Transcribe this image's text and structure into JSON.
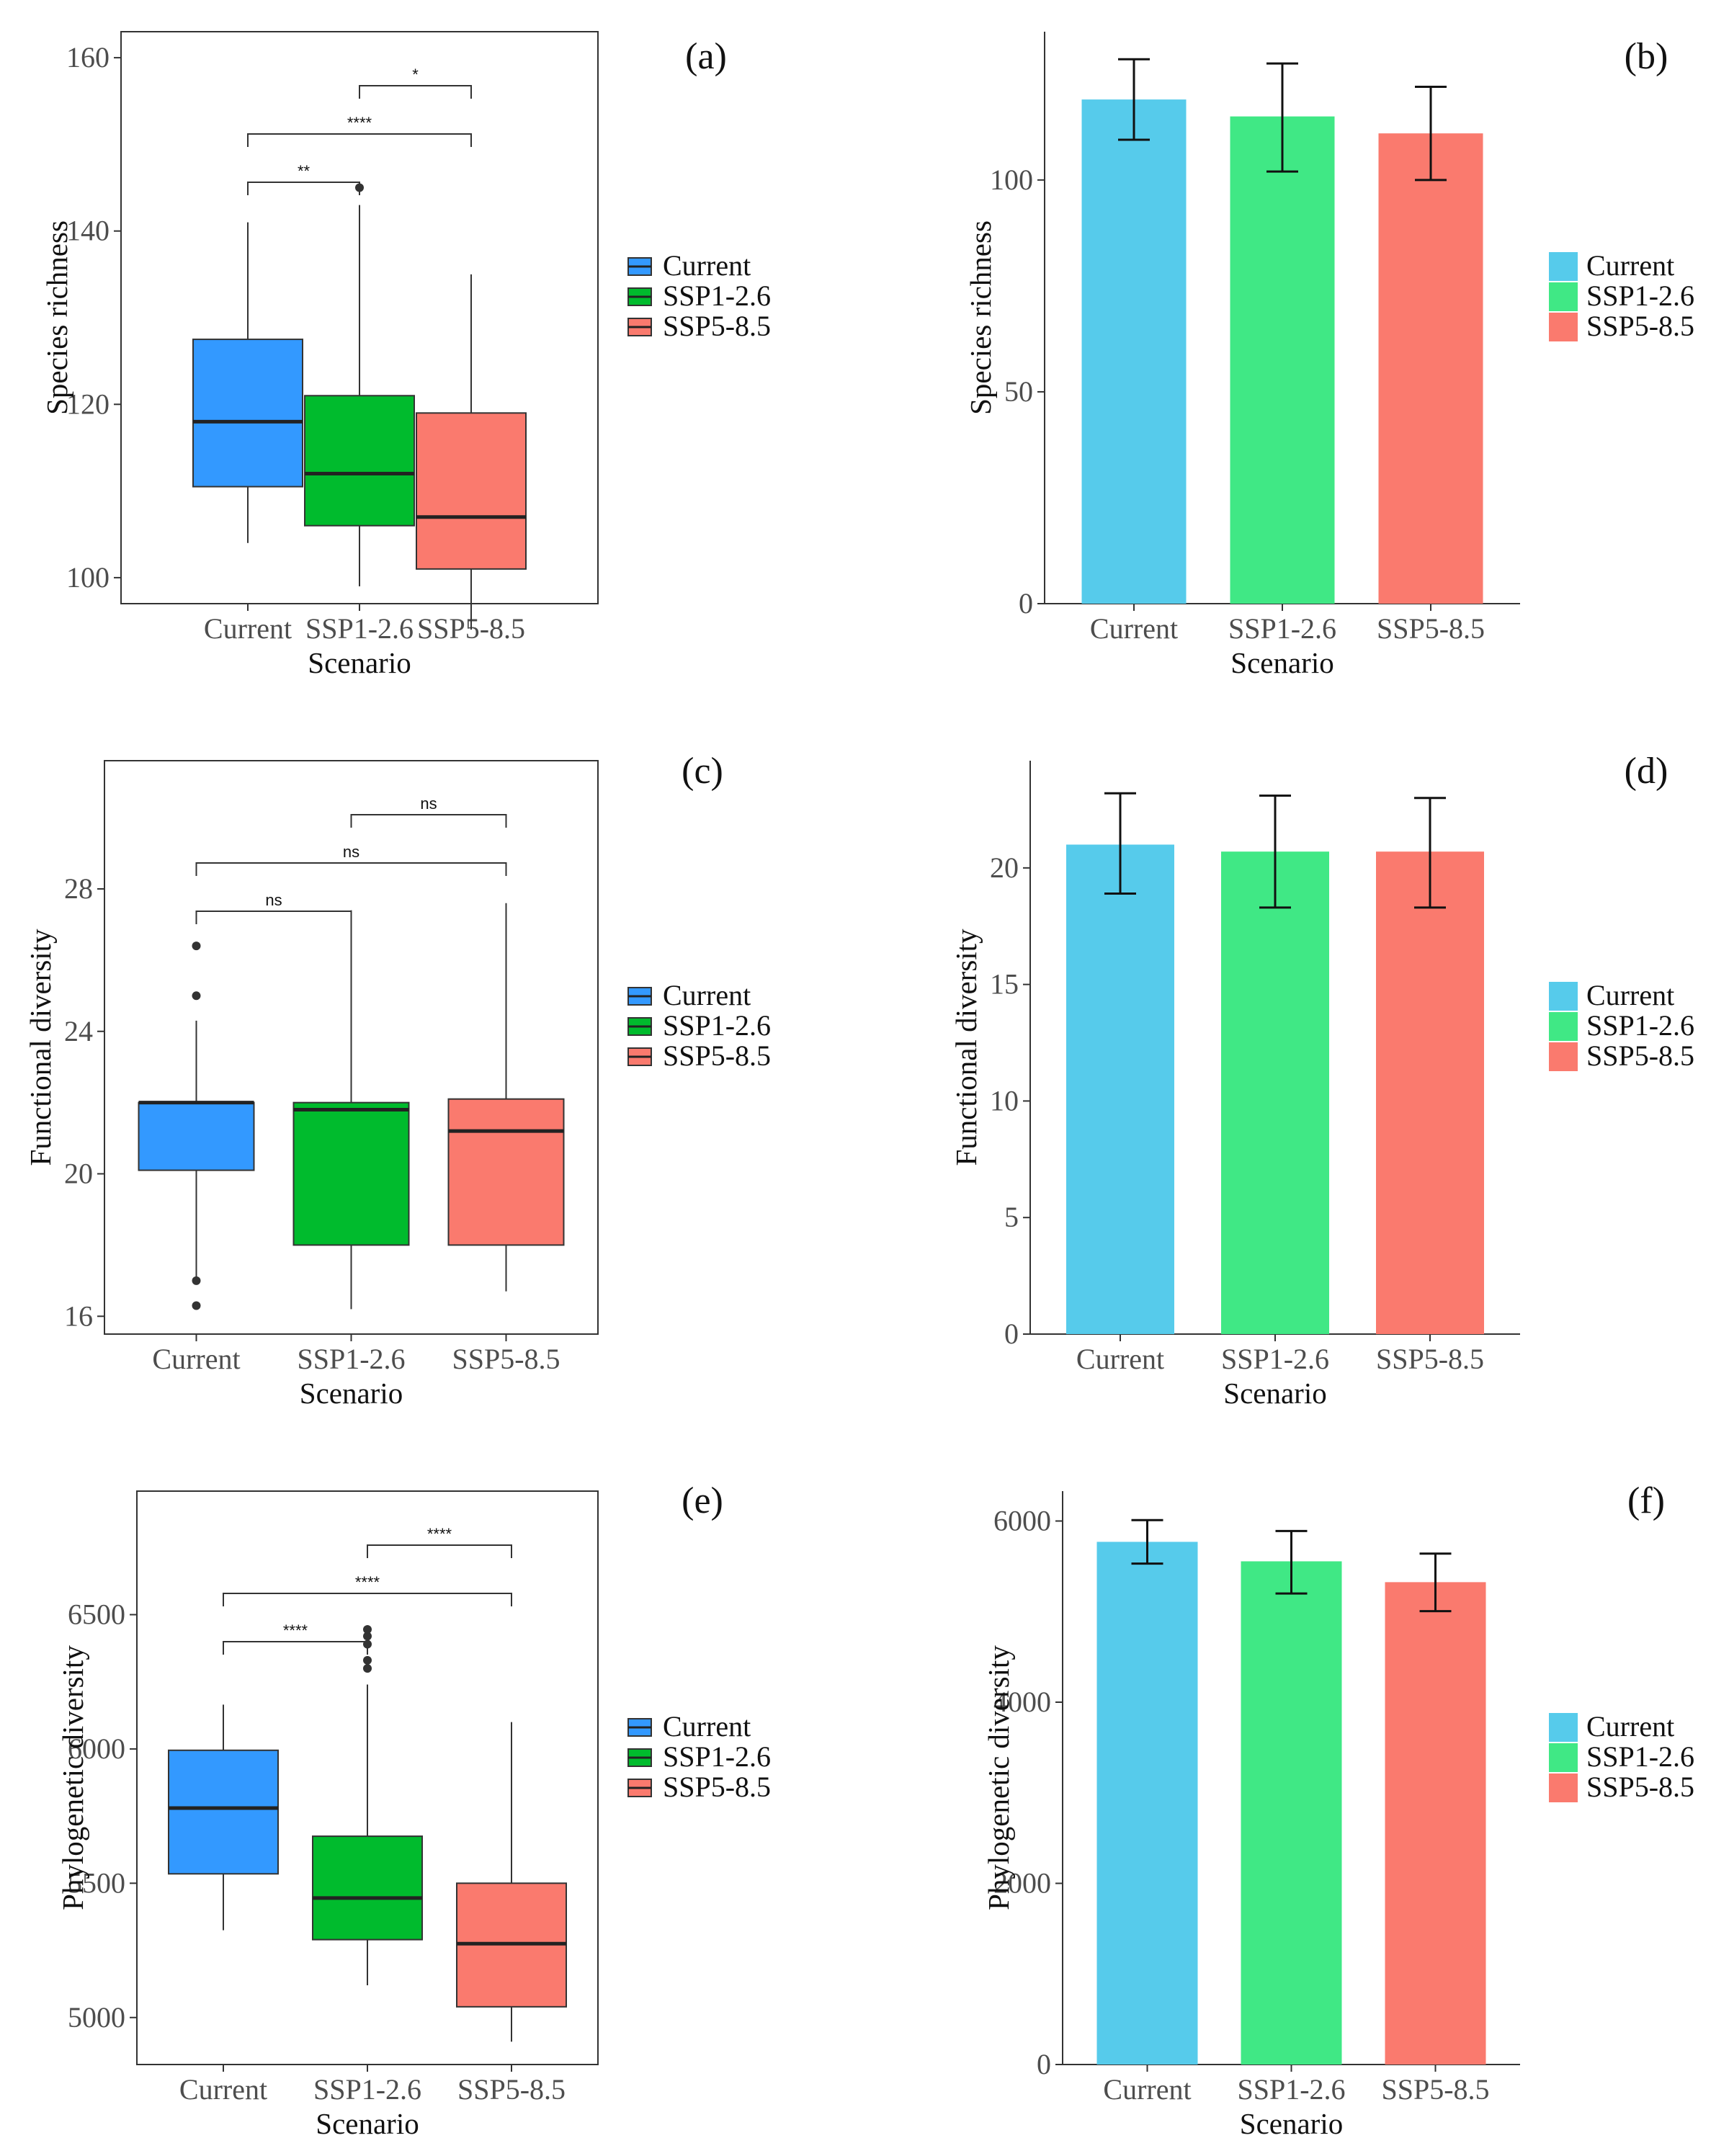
{
  "colors": {
    "box": [
      "#3399ff",
      "#00bb2d",
      "#fa7a6e"
    ],
    "bar": [
      "#56cbeb",
      "#40e885",
      "#fa7a6e"
    ]
  },
  "chart_data": [
    {
      "id": "a",
      "type": "box",
      "panel_label": "(a)",
      "title": "",
      "xlabel": "Scenario",
      "ylabel": "Species richness",
      "categories": [
        "Current",
        "SSP1-2.6",
        "SSP5-8.5"
      ],
      "ylim": [
        97,
        163
      ],
      "yticks": [
        100,
        120,
        140,
        160
      ],
      "boxes": [
        {
          "q1": 110.5,
          "median": 118,
          "q3": 127.5,
          "low": 104,
          "high": 141,
          "outliers": []
        },
        {
          "q1": 106,
          "median": 112,
          "q3": 121,
          "low": 99,
          "high": 143,
          "outliers": [
            145
          ]
        },
        {
          "q1": 101,
          "median": 107,
          "q3": 119,
          "low": 94,
          "high": 135,
          "outliers": []
        }
      ],
      "significance": [
        {
          "from": 0,
          "to": 1,
          "label": "**",
          "level": 1
        },
        {
          "from": 0,
          "to": 2,
          "label": "****",
          "level": 2
        },
        {
          "from": 1,
          "to": 2,
          "label": "*",
          "level": 3
        }
      ],
      "legend": [
        "Current",
        "SSP1-2.6",
        "SSP5-8.5"
      ]
    },
    {
      "id": "b",
      "type": "bar",
      "panel_label": "(b)",
      "title": "",
      "xlabel": "Scenario",
      "ylabel": "Species richness",
      "categories": [
        "Current",
        "SSP1-2.6",
        "SSP5-8.5"
      ],
      "ylim": [
        0,
        135
      ],
      "yticks": [
        0,
        50,
        100
      ],
      "values": [
        119,
        115,
        111
      ],
      "errors": [
        [
          109.5,
          128.5
        ],
        [
          102,
          127.5
        ],
        [
          100,
          122
        ]
      ],
      "legend": [
        "Current",
        "SSP1-2.6",
        "SSP5-8.5"
      ]
    },
    {
      "id": "c",
      "type": "box",
      "panel_label": "(c)",
      "title": "",
      "xlabel": "Scenario",
      "ylabel": "Functional diversity",
      "categories": [
        "Current",
        "SSP1-2.6",
        "SSP5-8.5"
      ],
      "ylim": [
        15.5,
        31.6
      ],
      "yticks": [
        16,
        20,
        24,
        28
      ],
      "boxes": [
        {
          "q1": 20.1,
          "median": 22.0,
          "q3": 22.0,
          "low": 17.0,
          "high": 24.3,
          "outliers": [
            16.3,
            17.0,
            25.0,
            26.4
          ]
        },
        {
          "q1": 18.0,
          "median": 21.8,
          "q3": 22.0,
          "low": 16.2,
          "high": 27.4,
          "outliers": []
        },
        {
          "q1": 18.0,
          "median": 21.2,
          "q3": 22.1,
          "low": 16.7,
          "high": 27.6,
          "outliers": []
        }
      ],
      "significance": [
        {
          "from": 0,
          "to": 1,
          "label": "ns",
          "level": 1
        },
        {
          "from": 0,
          "to": 2,
          "label": "ns",
          "level": 2
        },
        {
          "from": 1,
          "to": 2,
          "label": "ns",
          "level": 3
        }
      ],
      "legend": [
        "Current",
        "SSP1-2.6",
        "SSP5-8.5"
      ]
    },
    {
      "id": "d",
      "type": "bar",
      "panel_label": "(d)",
      "title": "",
      "xlabel": "Scenario",
      "ylabel": "Functional diversity",
      "categories": [
        "Current",
        "SSP1-2.6",
        "SSP5-8.5"
      ],
      "ylim": [
        0,
        24.6
      ],
      "yticks": [
        0,
        5,
        10,
        15,
        20
      ],
      "values": [
        21.0,
        20.7,
        20.7
      ],
      "errors": [
        [
          18.9,
          23.2
        ],
        [
          18.3,
          23.1
        ],
        [
          18.3,
          23.0
        ]
      ],
      "legend": [
        "Current",
        "SSP1-2.6",
        "SSP5-8.5"
      ]
    },
    {
      "id": "e",
      "type": "box",
      "panel_label": "(e)",
      "title": "",
      "xlabel": "Scenario",
      "ylabel": "Phylogenetic diversity",
      "categories": [
        "Current",
        "SSP1-2.6",
        "SSP5-8.5"
      ],
      "ylim": [
        4825,
        6960
      ],
      "yticks": [
        5000,
        5500,
        6000,
        6500
      ],
      "boxes": [
        {
          "q1": 5535,
          "median": 5780,
          "q3": 5995,
          "low": 5325,
          "high": 6165,
          "outliers": []
        },
        {
          "q1": 5290,
          "median": 5445,
          "q3": 5675,
          "low": 5120,
          "high": 6240,
          "outliers": [
            6300,
            6330,
            6390,
            6420,
            6445
          ]
        },
        {
          "q1": 5040,
          "median": 5275,
          "q3": 5500,
          "low": 4910,
          "high": 6100,
          "outliers": []
        }
      ],
      "significance": [
        {
          "from": 0,
          "to": 1,
          "label": "****",
          "level": 1
        },
        {
          "from": 0,
          "to": 2,
          "label": "****",
          "level": 2
        },
        {
          "from": 1,
          "to": 2,
          "label": "****",
          "level": 3
        }
      ],
      "legend": [
        "Current",
        "SSP1-2.6",
        "SSP5-8.5"
      ]
    },
    {
      "id": "f",
      "type": "bar",
      "panel_label": "(f)",
      "title": "",
      "xlabel": "Scenario",
      "ylabel": "Phylogenetic diversity",
      "categories": [
        "Current",
        "SSP1-2.6",
        "SSP5-8.5"
      ],
      "ylim": [
        0,
        6330
      ],
      "yticks": [
        0,
        2000,
        4000,
        6000
      ],
      "values": [
        5770,
        5555,
        5325
      ],
      "errors": [
        [
          5530,
          6010
        ],
        [
          5200,
          5890
        ],
        [
          5005,
          5640
        ]
      ],
      "legend": [
        "Current",
        "SSP1-2.6",
        "SSP5-8.5"
      ]
    }
  ]
}
